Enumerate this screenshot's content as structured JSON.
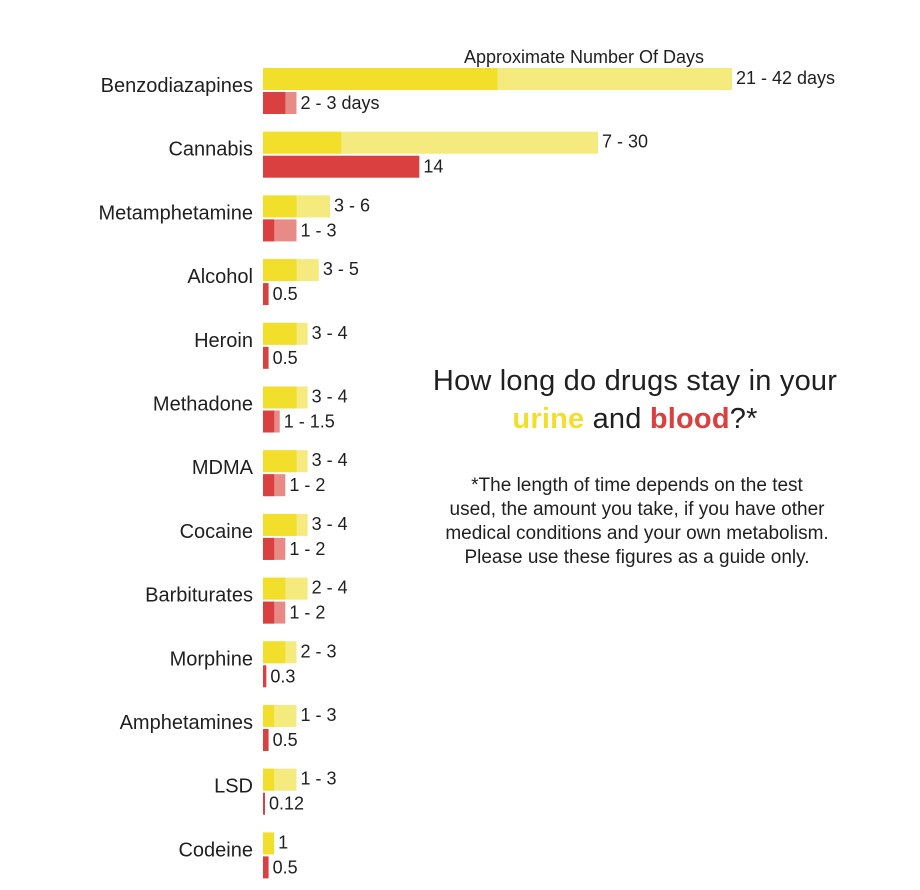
{
  "colors": {
    "urine_dark": "#f2df2b",
    "urine_light": "#f4ea7e",
    "blood_dark": "#d9403f",
    "blood_light": "#e88a86",
    "text": "#1f1f1f"
  },
  "heading": {
    "line1": "How long do drugs stay in your",
    "urine": "urine",
    "and": " and ",
    "blood": "blood",
    "suffix": "?*"
  },
  "footnote": [
    "*The length of time depends on the test",
    "used, the amount you take, if you have other",
    "medical conditions and your own metabolism.",
    "Please use these figures as a guide only."
  ],
  "chart_data": {
    "type": "bar",
    "orientation": "horizontal",
    "xlabel": "Approximate Number Of Days",
    "xlim": [
      0,
      42
    ],
    "grid": false,
    "categories": [
      "Benzodiazapines",
      "Cannabis",
      "Metamphetamine",
      "Alcohol",
      "Heroin",
      "Methadone",
      "MDMA",
      "Cocaine",
      "Barbiturates",
      "Morphine",
      "Amphetamines",
      "LSD",
      "Codeine"
    ],
    "series": [
      {
        "name": "urine",
        "min": [
          21,
          7,
          3,
          3,
          3,
          3,
          3,
          3,
          2,
          2,
          1,
          1,
          1
        ],
        "max": [
          42,
          30,
          6,
          5,
          4,
          4,
          4,
          4,
          4,
          3,
          3,
          3,
          1
        ],
        "labels": [
          "21 - 42 days",
          "7 - 30",
          "3 - 6",
          "3 - 5",
          "3 - 4",
          "3 - 4",
          "3 - 4",
          "3 - 4",
          "2 - 4",
          "2 - 3",
          "1 - 3",
          "1 - 3",
          "1"
        ]
      },
      {
        "name": "blood",
        "min": [
          2,
          14,
          1,
          0.5,
          0.5,
          1,
          1,
          1,
          1,
          0.3,
          0.5,
          0.12,
          0.5
        ],
        "max": [
          3,
          14,
          3,
          0.5,
          0.5,
          1.5,
          2,
          2,
          2,
          0.3,
          0.5,
          0.12,
          0.5
        ],
        "labels": [
          "2 - 3 days",
          "14",
          "1 - 3",
          "0.5",
          "0.5",
          "1 - 1.5",
          "1 - 2",
          "1 - 2",
          "1 - 2",
          "0.3",
          "0.5",
          "0.12",
          "0.5"
        ]
      }
    ]
  }
}
